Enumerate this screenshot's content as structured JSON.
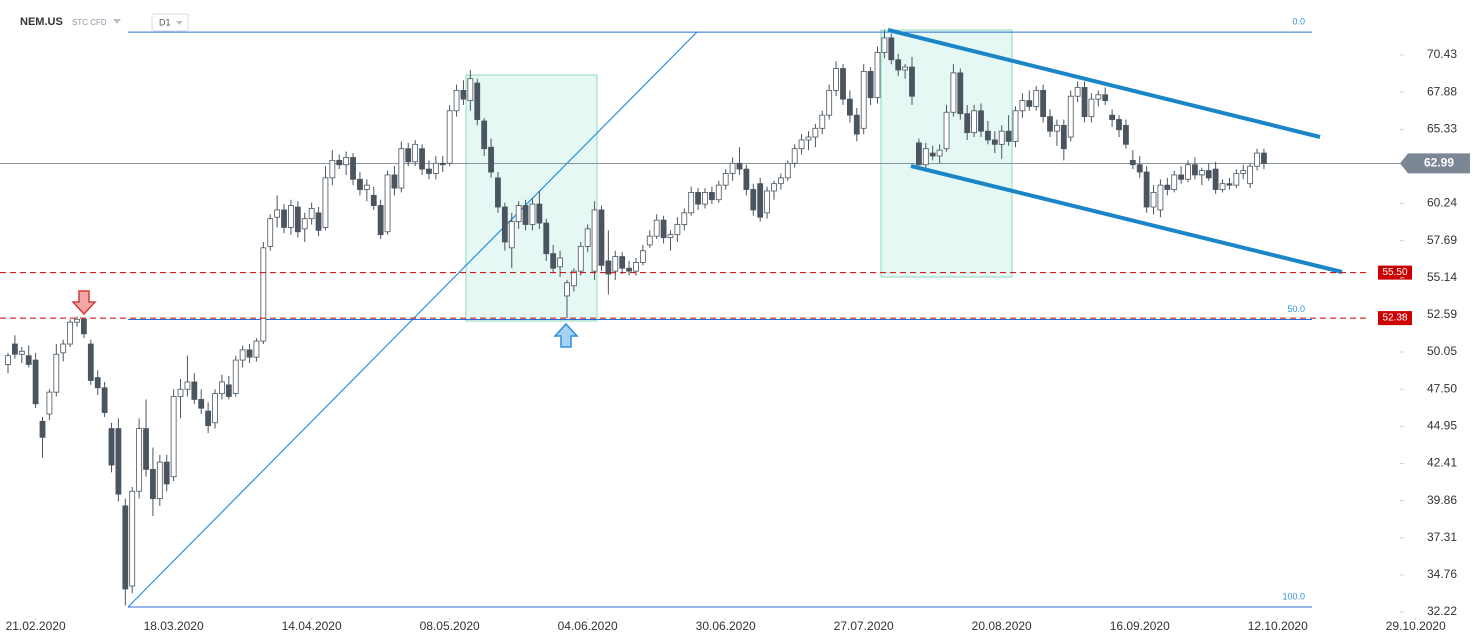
{
  "chart_data": {
    "type": "candlestick",
    "symbol": "NEM.US",
    "instrument": "STC CFD",
    "interval": "D1",
    "up_color": "#ffffff",
    "down_color": "#4a5560",
    "open": [
      49.2,
      50.6,
      49.9,
      49.8,
      49.5,
      45.3,
      45.8,
      47.3,
      50.0,
      50.6,
      52.1,
      52.3,
      50.6,
      48.3,
      47.6,
      44.8,
      44.8,
      39.5,
      34.0,
      40.5,
      44.8,
      42.0,
      40.0,
      42.5,
      41.5,
      47.0,
      47.5,
      48.0,
      46.8,
      46.0,
      45.2,
      47.2,
      47.8,
      47.2,
      49.5,
      50.2,
      49.7,
      50.8,
      57.3,
      59.3,
      59.8,
      58.6,
      60.0,
      58.5,
      59.2,
      59.6,
      58.6,
      62.0,
      63.2,
      62.9,
      63.4,
      61.9,
      61.2,
      60.8,
      60.1,
      58.3,
      62.2,
      61.3,
      64.0,
      63.1,
      64.0,
      62.6,
      62.3,
      63.0,
      63.0,
      66.6,
      68.0,
      67.3,
      68.5,
      65.9,
      64.1,
      62.0,
      60.0,
      57.2,
      59.0,
      60.1,
      58.8,
      60.2,
      58.9,
      56.8,
      55.9,
      53.9,
      54.6,
      55.6,
      57.3,
      55.6,
      59.8,
      56.3,
      55.6,
      56.6,
      55.8,
      55.6,
      56.2,
      57.4,
      58.0,
      59.1,
      57.9,
      58.1,
      58.8,
      59.6,
      61.0,
      60.2,
      61.0,
      60.5,
      61.5,
      62.3,
      63.0,
      62.6,
      61.2,
      61.6,
      59.6,
      61.1,
      61.6,
      62.0,
      63.0,
      64.0,
      64.6,
      64.8,
      65.4,
      66.3,
      68.0,
      69.5,
      67.4,
      66.3,
      65.4,
      69.3,
      67.5,
      70.6,
      71.6,
      70.1,
      69.4,
      69.6,
      64.4,
      62.9,
      63.7,
      63.5,
      64.0,
      66.5,
      69.2,
      66.4,
      65.1,
      66.6,
      65.2,
      64.6,
      64.3,
      65.2,
      64.5,
      66.6,
      67.3,
      66.9,
      68.0,
      66.2,
      65.2,
      65.6,
      64.8,
      67.6,
      68.2,
      66.2,
      67.4,
      67.7,
      66.3,
      66.0,
      65.6,
      63.2,
      62.9,
      62.4,
      60.0,
      59.8,
      61.5,
      61.2,
      62.2,
      61.9,
      62.9,
      62.2,
      62.5,
      62.6,
      61.2,
      61.6,
      61.5,
      62.3,
      61.6,
      62.8,
      63.7
    ],
    "high": [
      50.0,
      51.2,
      50.4,
      50.5,
      50.0,
      45.6,
      47.5,
      50.6,
      50.9,
      52.3,
      52.5,
      52.4,
      50.9,
      48.8,
      48.0,
      45.2,
      45.5,
      40.0,
      40.8,
      45.5,
      46.8,
      43.5,
      43.0,
      43.0,
      47.5,
      48.2,
      49.8,
      48.6,
      47.5,
      46.6,
      47.5,
      48.5,
      48.4,
      49.8,
      50.5,
      50.6,
      51.0,
      57.6,
      59.5,
      60.8,
      60.2,
      60.5,
      60.4,
      59.6,
      60.3,
      60.0,
      62.8,
      63.9,
      63.6,
      63.8,
      63.7,
      62.4,
      61.9,
      61.4,
      60.5,
      62.5,
      62.8,
      64.5,
      64.4,
      64.6,
      64.3,
      63.2,
      63.5,
      63.5,
      67.0,
      68.4,
      68.7,
      69.4,
      68.8,
      66.1,
      64.7,
      62.4,
      60.3,
      59.6,
      60.4,
      60.5,
      60.6,
      61.1,
      59.2,
      57.4,
      57.0,
      55.0,
      55.8,
      57.6,
      58.8,
      60.4,
      60.1,
      58.4,
      57.0,
      56.9,
      56.3,
      56.5,
      57.4,
      58.4,
      59.5,
      59.4,
      58.4,
      59.3,
      59.9,
      61.4,
      61.3,
      61.3,
      61.4,
      61.8,
      62.6,
      63.4,
      64.1,
      62.9,
      61.6,
      62.0,
      61.4,
      61.8,
      62.3,
      63.2,
      64.3,
      65.0,
      65.2,
      65.7,
      66.6,
      68.4,
      70.0,
      69.8,
      68.0,
      66.8,
      69.8,
      69.6,
      71.0,
      72.13,
      71.9,
      70.5,
      69.8,
      70.3,
      64.7,
      64.4,
      64.2,
      64.3,
      67.0,
      69.8,
      69.5,
      67.0,
      67.0,
      67.1,
      65.9,
      65.2,
      65.6,
      66.3,
      66.9,
      67.8,
      68.0,
      68.3,
      68.4,
      66.7,
      66.0,
      66.0,
      68.0,
      68.6,
      68.6,
      67.8,
      68.0,
      68.2,
      66.7,
      66.3,
      66.0,
      63.9,
      63.5,
      62.8,
      61.5,
      61.9,
      62.0,
      62.5,
      62.8,
      63.2,
      63.4,
      62.7,
      63.0,
      63.1,
      61.9,
      62.0,
      62.6,
      62.9,
      63.0,
      64.0,
      64.0
    ],
    "low": [
      48.6,
      49.6,
      49.3,
      49.0,
      46.2,
      42.8,
      45.4,
      47.0,
      49.4,
      50.4,
      51.8,
      51.0,
      47.8,
      47.1,
      45.6,
      41.8,
      39.8,
      32.66,
      33.5,
      40.0,
      41.5,
      38.8,
      39.5,
      40.5,
      41.2,
      45.5,
      47.0,
      46.5,
      45.8,
      44.5,
      44.8,
      46.8,
      46.8,
      47.0,
      49.0,
      49.3,
      49.4,
      50.6,
      57.0,
      58.6,
      58.2,
      58.1,
      57.9,
      57.6,
      58.8,
      58.0,
      58.4,
      61.5,
      62.6,
      62.2,
      61.5,
      60.8,
      60.4,
      59.8,
      57.8,
      58.1,
      60.8,
      61.0,
      62.8,
      62.8,
      62.2,
      61.9,
      61.9,
      62.4,
      62.8,
      66.2,
      67.0,
      66.6,
      65.6,
      63.5,
      62.0,
      59.6,
      57.0,
      55.8,
      58.5,
      58.4,
      58.4,
      58.5,
      56.3,
      55.5,
      55.2,
      52.38,
      54.2,
      55.3,
      56.9,
      55.0,
      55.6,
      54.0,
      55.0,
      55.4,
      55.3,
      55.3,
      56.0,
      57.2,
      57.8,
      57.5,
      57.0,
      57.6,
      58.4,
      59.4,
      59.8,
      59.9,
      60.2,
      60.3,
      61.2,
      61.8,
      62.2,
      60.8,
      59.4,
      59.0,
      59.2,
      60.5,
      61.2,
      61.8,
      62.7,
      63.6,
      63.9,
      64.1,
      65.0,
      66.0,
      67.6,
      67.0,
      65.8,
      64.5,
      65.0,
      67.0,
      67.1,
      70.2,
      69.8,
      69.0,
      68.8,
      67.0,
      62.7,
      62.6,
      63.2,
      63.0,
      63.8,
      66.2,
      66.0,
      64.6,
      64.8,
      64.8,
      64.3,
      63.7,
      63.3,
      64.2,
      64.1,
      66.1,
      66.6,
      66.6,
      65.8,
      64.8,
      64.2,
      63.2,
      64.5,
      67.2,
      65.8,
      65.8,
      66.9,
      67.0,
      65.5,
      64.8,
      64.0,
      62.6,
      62.0,
      59.6,
      59.5,
      59.3,
      60.8,
      61.0,
      61.6,
      61.7,
      61.9,
      61.5,
      61.8,
      60.9,
      61.0,
      61.2,
      61.3,
      61.9,
      61.3,
      62.5,
      62.6
    ],
    "close": [
      49.8,
      49.9,
      50.1,
      49.2,
      46.5,
      44.2,
      47.3,
      49.9,
      50.6,
      52.1,
      52.3,
      51.3,
      48.1,
      47.6,
      45.9,
      42.3,
      40.3,
      33.8,
      40.5,
      44.8,
      42.0,
      40.0,
      42.5,
      41.0,
      47.0,
      47.5,
      48.0,
      46.8,
      46.2,
      45.0,
      47.2,
      48.0,
      47.0,
      49.5,
      50.2,
      49.7,
      50.8,
      57.2,
      59.2,
      59.8,
      58.6,
      60.1,
      58.3,
      59.2,
      59.9,
      58.4,
      62.0,
      63.2,
      62.9,
      63.4,
      61.9,
      61.2,
      61.5,
      60.1,
      58.1,
      62.2,
      61.3,
      64.0,
      63.1,
      64.3,
      62.6,
      62.3,
      63.0,
      62.9,
      66.6,
      68.0,
      67.4,
      68.8,
      66.0,
      64.0,
      62.4,
      60.0,
      57.6,
      59.0,
      60.1,
      58.8,
      60.2,
      58.9,
      56.8,
      55.8,
      56.5,
      54.8,
      55.6,
      57.3,
      58.5,
      59.8,
      56.0,
      55.4,
      56.6,
      55.8,
      55.6,
      56.2,
      57.0,
      58.0,
      59.1,
      57.9,
      58.1,
      58.8,
      59.6,
      61.0,
      60.2,
      61.0,
      60.5,
      61.5,
      62.3,
      63.0,
      62.6,
      61.2,
      59.8,
      59.3,
      61.1,
      61.6,
      62.0,
      63.0,
      64.0,
      64.6,
      64.8,
      65.4,
      66.3,
      68.0,
      69.5,
      67.4,
      66.3,
      65.0,
      69.3,
      67.5,
      70.6,
      71.6,
      70.1,
      69.4,
      69.6,
      67.6,
      62.9,
      64.0,
      63.5,
      63.9,
      66.5,
      69.2,
      66.4,
      65.1,
      66.6,
      65.2,
      64.6,
      64.3,
      65.2,
      64.5,
      66.6,
      67.3,
      66.9,
      68.0,
      66.2,
      65.2,
      65.6,
      64.0,
      67.6,
      68.2,
      66.2,
      67.4,
      67.7,
      67.3,
      66.0,
      65.3,
      64.3,
      62.9,
      62.4,
      60.0,
      61.0,
      61.5,
      61.2,
      62.2,
      61.9,
      62.9,
      62.2,
      62.5,
      62.0,
      61.2,
      61.6,
      61.5,
      62.3,
      62.5,
      62.8,
      63.7,
      62.99
    ],
    "xlim": [
      -1.16,
      213.6
    ],
    "xticks": [
      {
        "value": 4,
        "label": "21.02.2020"
      },
      {
        "value": 24,
        "label": "18.03.2020"
      },
      {
        "value": 44,
        "label": "14.04.2020"
      },
      {
        "value": 64,
        "label": "08.05.2020"
      },
      {
        "value": 84,
        "label": "04.06.2020"
      },
      {
        "value": 104,
        "label": "30.06.2020"
      },
      {
        "value": 124,
        "label": "27.07.2020"
      },
      {
        "value": 144,
        "label": "20.08.2020"
      },
      {
        "value": 164,
        "label": "16.09.2020"
      },
      {
        "value": 184,
        "label": "12.10.2020"
      },
      {
        "value": 204,
        "label": "29.10.2020"
      }
    ],
    "ylim": [
      31.67,
      74.2
    ],
    "yticks": [
      70.43,
      67.88,
      65.33,
      60.24,
      57.69,
      55.14,
      52.59,
      50.05,
      {
        "value": 47.5,
        "label": "47.50"
      },
      44.95,
      42.41,
      39.86,
      37.31,
      34.76,
      32.22
    ],
    "levels": [
      {
        "value": 55.5,
        "label": "55.50",
        "color": "#cc0000"
      },
      {
        "value": 52.38,
        "label": "52.38",
        "color": "#cc0000"
      }
    ],
    "last_price": {
      "value": 62.99,
      "color": "#7b8794"
    },
    "fibonacci": [
      {
        "label": "0.0",
        "value": 72.0
      },
      {
        "label": "50.0",
        "value": 52.28
      },
      {
        "label": "100.0",
        "value": 32.56
      }
    ]
  }
}
